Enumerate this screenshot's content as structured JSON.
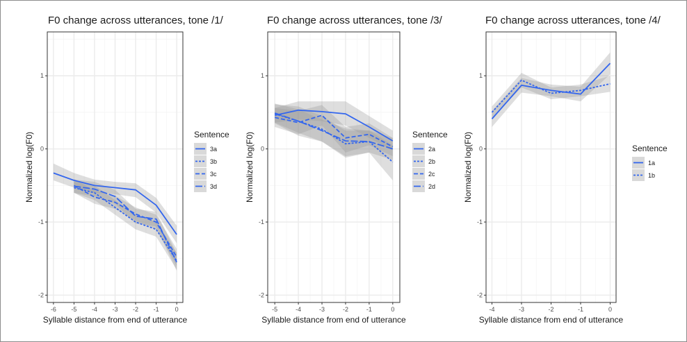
{
  "colors": {
    "line": "#3366ee",
    "ribbon": "#999999",
    "panel_border": "#333333",
    "grid_major": "#ebebeb",
    "grid_minor": "#f5f5f5",
    "legend_key_bg": "#d9d9d9"
  },
  "chart_data": [
    {
      "type": "line",
      "title": "F0 change across utterances, tone /1/",
      "xlabel": "Syllable distance from end of utterance",
      "ylabel": "Normalized log(F0)",
      "xlim": [
        -6.3,
        0.3
      ],
      "ylim": [
        -2.1,
        1.6
      ],
      "x_ticks": [
        -6,
        -5,
        -4,
        -3,
        -2,
        -1,
        0
      ],
      "y_ticks": [
        -2,
        -1,
        0,
        1
      ],
      "grid": true,
      "legend": {
        "title": "Sentence",
        "position": "right"
      },
      "series": [
        {
          "name": "3a",
          "linetype": "solid",
          "x": [
            -6,
            -5,
            -4,
            -3,
            -2,
            -1,
            0
          ],
          "y": [
            -0.33,
            -0.43,
            -0.5,
            -0.53,
            -0.56,
            -0.77,
            -1.17
          ],
          "lower": [
            -0.43,
            -0.53,
            -0.6,
            -0.62,
            -0.66,
            -0.87,
            -1.29
          ],
          "upper": [
            -0.2,
            -0.33,
            -0.42,
            -0.45,
            -0.47,
            -0.67,
            -1.05
          ]
        },
        {
          "name": "3b",
          "linetype": "dotted",
          "x": [
            -5,
            -4,
            -3,
            -2,
            -1,
            0
          ],
          "y": [
            -0.53,
            -0.6,
            -0.8,
            -1.0,
            -1.1,
            -1.53
          ],
          "lower": [
            -0.6,
            -0.7,
            -0.9,
            -1.1,
            -1.2,
            -1.65
          ],
          "upper": [
            -0.45,
            -0.5,
            -0.7,
            -0.9,
            -1.0,
            -1.42
          ]
        },
        {
          "name": "3c",
          "linetype": "dashed",
          "x": [
            -5,
            -4,
            -3,
            -2,
            -1,
            0
          ],
          "y": [
            -0.5,
            -0.66,
            -0.73,
            -0.89,
            -1.0,
            -1.48
          ],
          "lower": [
            -0.6,
            -0.75,
            -0.82,
            -0.98,
            -1.1,
            -1.6
          ],
          "upper": [
            -0.41,
            -0.57,
            -0.64,
            -0.8,
            -0.9,
            -1.37
          ]
        },
        {
          "name": "3d",
          "linetype": "longdash",
          "x": [
            -5,
            -4,
            -3,
            -2,
            -1,
            0
          ],
          "y": [
            -0.51,
            -0.55,
            -0.65,
            -0.92,
            -0.96,
            -1.55
          ],
          "lower": [
            -0.6,
            -0.65,
            -0.75,
            -1.02,
            -1.06,
            -1.67
          ],
          "upper": [
            -0.42,
            -0.45,
            -0.56,
            -0.82,
            -0.86,
            -1.43
          ]
        }
      ]
    },
    {
      "type": "line",
      "title": "F0 change across utterances, tone /3/",
      "xlabel": "Syllable distance from end of utterance",
      "ylabel": "Normalized log(F0)",
      "xlim": [
        -5.3,
        0.3
      ],
      "ylim": [
        -2.1,
        1.6
      ],
      "x_ticks": [
        -5,
        -4,
        -3,
        -2,
        -1,
        0
      ],
      "y_ticks": [
        -2,
        -1,
        0,
        1
      ],
      "grid": true,
      "legend": {
        "title": "Sentence",
        "position": "right"
      },
      "series": [
        {
          "name": "2a",
          "linetype": "solid",
          "x": [
            -5,
            -4,
            -3,
            -2,
            -1,
            0
          ],
          "y": [
            0.46,
            0.53,
            0.51,
            0.48,
            0.3,
            0.11
          ],
          "lower": [
            0.36,
            0.4,
            0.38,
            0.32,
            0.15,
            -0.02
          ],
          "upper": [
            0.56,
            0.65,
            0.65,
            0.65,
            0.45,
            0.25
          ]
        },
        {
          "name": "2b",
          "linetype": "dotted",
          "x": [
            -5,
            -4,
            -3,
            -2,
            -1,
            0
          ],
          "y": [
            0.48,
            0.38,
            0.27,
            0.07,
            0.1,
            -0.18
          ],
          "lower": [
            0.35,
            0.18,
            0.1,
            -0.12,
            -0.05,
            -0.43
          ],
          "upper": [
            0.61,
            0.58,
            0.45,
            0.25,
            0.25,
            0.05
          ]
        },
        {
          "name": "2c",
          "linetype": "dashed",
          "x": [
            -5,
            -4,
            -3,
            -2,
            -1,
            0
          ],
          "y": [
            0.43,
            0.36,
            0.46,
            0.15,
            0.2,
            0.03
          ],
          "lower": [
            0.3,
            0.2,
            0.32,
            -0.05,
            0.05,
            -0.1
          ],
          "upper": [
            0.56,
            0.52,
            0.6,
            0.3,
            0.35,
            0.15
          ]
        },
        {
          "name": "2d",
          "linetype": "longdash",
          "x": [
            -5,
            -4,
            -3,
            -2,
            -1,
            0
          ],
          "y": [
            0.49,
            0.38,
            0.25,
            0.11,
            0.1,
            0.0
          ],
          "lower": [
            0.36,
            0.22,
            0.1,
            -0.1,
            -0.05,
            -0.15
          ],
          "upper": [
            0.62,
            0.54,
            0.4,
            0.28,
            0.25,
            0.15
          ]
        }
      ]
    },
    {
      "type": "line",
      "title": "F0 change across utterances, tone /4/",
      "xlabel": "Syllable distance from end of utterance",
      "ylabel": "Normalized log(F0)",
      "xlim": [
        -4.2,
        0.2
      ],
      "ylim": [
        -2.1,
        1.6
      ],
      "x_ticks": [
        -4,
        -3,
        -2,
        -1,
        0
      ],
      "y_ticks": [
        -2,
        -1,
        0,
        1
      ],
      "grid": true,
      "legend": {
        "title": "Sentence",
        "position": "right"
      },
      "series": [
        {
          "name": "1a",
          "linetype": "solid",
          "x": [
            -4,
            -3,
            -2,
            -1,
            0
          ],
          "y": [
            0.41,
            0.87,
            0.8,
            0.75,
            1.17
          ],
          "lower": [
            0.3,
            0.77,
            0.72,
            0.65,
            1.02
          ],
          "upper": [
            0.52,
            0.97,
            0.88,
            0.85,
            1.32
          ]
        },
        {
          "name": "1b",
          "linetype": "dotted",
          "x": [
            -4,
            -3,
            -2,
            -1,
            0
          ],
          "y": [
            0.5,
            0.94,
            0.76,
            0.8,
            0.89
          ],
          "lower": [
            0.42,
            0.84,
            0.68,
            0.72,
            0.78
          ],
          "upper": [
            0.58,
            1.04,
            0.84,
            0.88,
            1.0
          ]
        }
      ]
    }
  ]
}
